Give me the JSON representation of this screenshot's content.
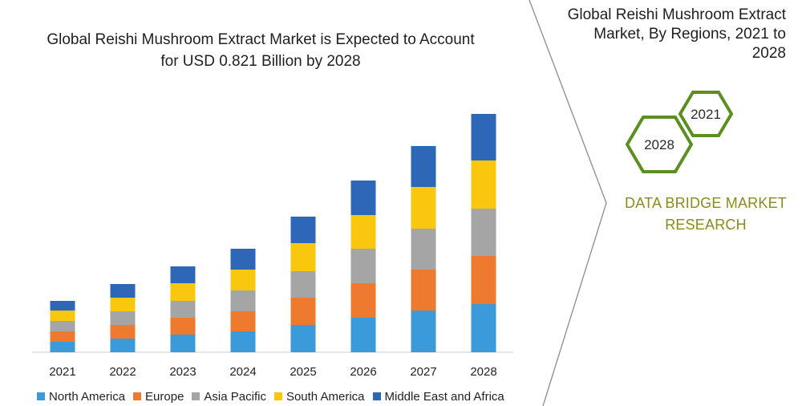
{
  "colors": {
    "north_america": "#3b9ad9",
    "europe": "#ee7a30",
    "asia_pacific": "#a5a5a5",
    "south_america": "#f9c80e",
    "middle_east_africa": "#2e67b8",
    "hexagon": "#5b8f22",
    "brand": "#8a8a20",
    "divider": "#8c8c8c"
  },
  "chart_title": {
    "line1": "Global Reishi Mushroom Extract Market is Expected to Account",
    "line2": "for USD 0.821 Billion by 2028"
  },
  "side_panel": {
    "title_line1": "Global Reishi Mushroom Extract",
    "title_line2": "Market, By Regions, 2021 to",
    "title_line3": "2028",
    "badge_back": "2021",
    "badge_front": "2028",
    "brand_line1": "DATA BRIDGE MARKET",
    "brand_line2": "RESEARCH"
  },
  "chart_data": {
    "type": "bar",
    "stacked": true,
    "title": "Global Reishi Mushroom Extract Market is Expected to Account for USD 0.821 Billion by 2028",
    "categories": [
      "2021",
      "2022",
      "2023",
      "2024",
      "2025",
      "2026",
      "2027",
      "2028"
    ],
    "series": [
      {
        "name": "North America",
        "color": "#3b9ad9",
        "values": [
          13,
          17,
          22,
          26,
          34,
          43,
          52,
          60
        ]
      },
      {
        "name": "Europe",
        "color": "#ee7a30",
        "values": [
          13,
          17,
          21,
          25,
          34,
          43,
          51,
          60
        ]
      },
      {
        "name": "Asia Pacific",
        "color": "#a5a5a5",
        "values": [
          13,
          17,
          21,
          26,
          33,
          43,
          51,
          59
        ]
      },
      {
        "name": "South America",
        "color": "#f9c80e",
        "values": [
          13,
          17,
          22,
          26,
          35,
          42,
          52,
          60
        ]
      },
      {
        "name": "Middle East and Africa",
        "color": "#2e67b8",
        "values": [
          12,
          17,
          21,
          26,
          33,
          43,
          51,
          58
        ]
      }
    ],
    "ylim": [
      0,
      300
    ],
    "y_axis_visible": false,
    "grid": false,
    "legend_position": "bottom"
  }
}
